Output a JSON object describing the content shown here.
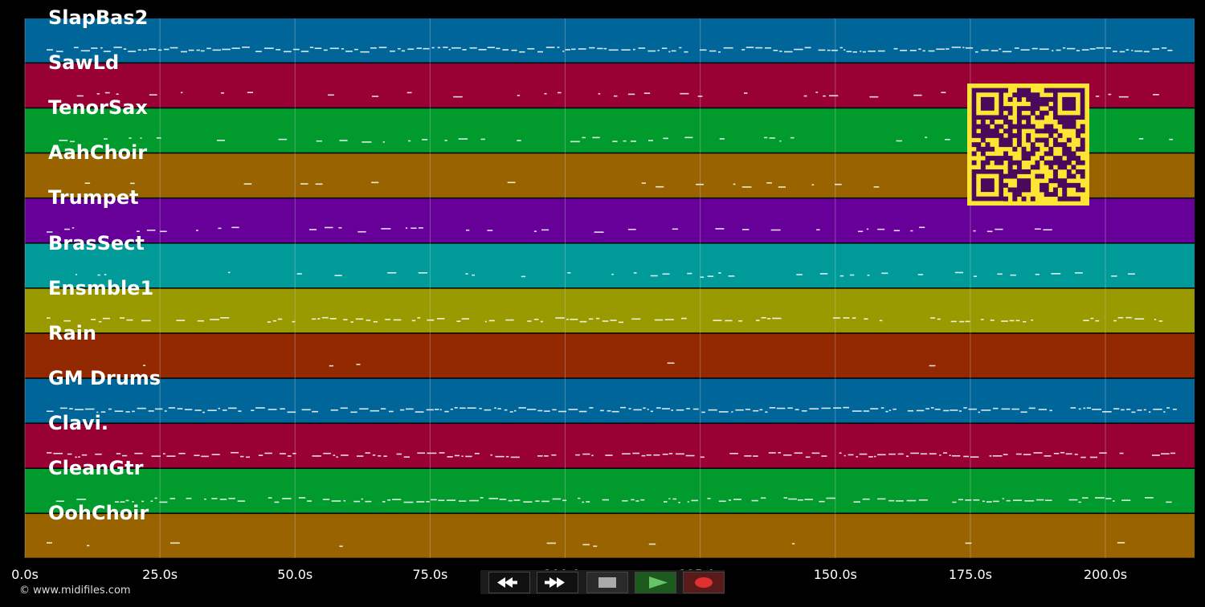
{
  "colors": {
    "background": "#000000",
    "track_palette": [
      "#00669a",
      "#990033",
      "#009a2d",
      "#996400",
      "#660099",
      "#009a99",
      "#999a00",
      "#932900"
    ],
    "note": "#ffffff",
    "grid": "#d0d0d0",
    "qr_fg": "#ffe533",
    "qr_bg": "#4a0a5c"
  },
  "tracks": [
    {
      "name": "SlapBas2"
    },
    {
      "name": "SawLd"
    },
    {
      "name": "TenorSax"
    },
    {
      "name": "AahChoir"
    },
    {
      "name": "Trumpet"
    },
    {
      "name": "BrasSect"
    },
    {
      "name": "Ensmble1"
    },
    {
      "name": "Rain"
    },
    {
      "name": "GM Drums"
    },
    {
      "name": "Clavi."
    },
    {
      "name": "CleanGtr"
    },
    {
      "name": "OohChoir"
    }
  ],
  "timeline": {
    "ticks": [
      "0.0s",
      "25.0s",
      "50.0s",
      "75.0s",
      "100.0s",
      "125.0s",
      "150.0s",
      "175.0s",
      "200.0s"
    ],
    "tick_seconds": [
      0,
      25,
      50,
      75,
      100,
      125,
      150,
      175,
      200
    ],
    "end_seconds": 216.5
  },
  "footer": {
    "copyright": "© www.midifiles.com"
  },
  "transport": {
    "buttons": [
      {
        "name": "rewind",
        "icon": "rewind-icon"
      },
      {
        "name": "fast-forward",
        "icon": "fast-forward-icon"
      },
      {
        "name": "stop",
        "icon": "stop-icon"
      },
      {
        "name": "play",
        "icon": "play-icon"
      },
      {
        "name": "record",
        "icon": "record-icon"
      }
    ]
  },
  "qr_code": {
    "icon": "qr-code-icon"
  }
}
